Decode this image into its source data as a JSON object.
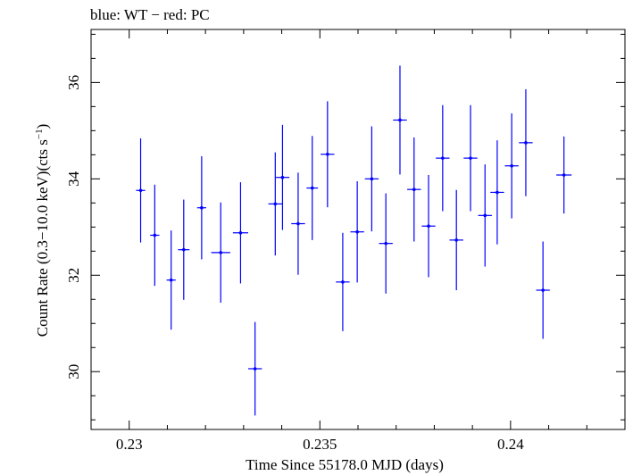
{
  "chart_data": {
    "type": "scatter",
    "title": "blue: WT − red: PC",
    "xlabel": "Time Since 55178.0 MJD (days)",
    "ylabel_main": "Count Rate (0.3−10.0 keV)(cts s",
    "ylabel_sup": "−1",
    "ylabel_close": ")",
    "xlim": [
      0.229,
      0.243
    ],
    "ylim": [
      28.8,
      37.1
    ],
    "xticks": [
      {
        "value": 0.23,
        "label": "0.23"
      },
      {
        "value": 0.235,
        "label": "0.235"
      },
      {
        "value": 0.24,
        "label": "0.24"
      }
    ],
    "yticks": [
      {
        "value": 30,
        "label": "30"
      },
      {
        "value": 32,
        "label": "32"
      },
      {
        "value": 34,
        "label": "34"
      },
      {
        "value": 36,
        "label": "36"
      }
    ],
    "series": [
      {
        "color": "#0000ff",
        "points": [
          {
            "x": 0.2303,
            "y": 33.76,
            "xerr": 0.00012,
            "yerr": 1.08
          },
          {
            "x": 0.23067,
            "y": 32.83,
            "xerr": 0.00012,
            "yerr": 1.05
          },
          {
            "x": 0.2311,
            "y": 31.9,
            "xerr": 0.00012,
            "yerr": 1.03
          },
          {
            "x": 0.23143,
            "y": 32.53,
            "xerr": 0.00015,
            "yerr": 1.04
          },
          {
            "x": 0.2319,
            "y": 33.4,
            "xerr": 0.00012,
            "yerr": 1.07
          },
          {
            "x": 0.2324,
            "y": 32.47,
            "xerr": 0.00025,
            "yerr": 1.04
          },
          {
            "x": 0.23292,
            "y": 32.88,
            "xerr": 0.0002,
            "yerr": 1.05
          },
          {
            "x": 0.2333,
            "y": 30.06,
            "xerr": 0.00018,
            "yerr": 0.97
          },
          {
            "x": 0.23383,
            "y": 33.48,
            "xerr": 0.00018,
            "yerr": 1.07
          },
          {
            "x": 0.23402,
            "y": 34.03,
            "xerr": 0.00018,
            "yerr": 1.09
          },
          {
            "x": 0.23443,
            "y": 33.07,
            "xerr": 0.00018,
            "yerr": 1.06
          },
          {
            "x": 0.2348,
            "y": 33.81,
            "xerr": 0.00015,
            "yerr": 1.08
          },
          {
            "x": 0.2352,
            "y": 34.51,
            "xerr": 0.00018,
            "yerr": 1.1
          },
          {
            "x": 0.2356,
            "y": 31.86,
            "xerr": 0.00018,
            "yerr": 1.02
          },
          {
            "x": 0.23598,
            "y": 32.9,
            "xerr": 0.00018,
            "yerr": 1.05
          },
          {
            "x": 0.23636,
            "y": 34.0,
            "xerr": 0.00018,
            "yerr": 1.09
          },
          {
            "x": 0.23673,
            "y": 32.66,
            "xerr": 0.00018,
            "yerr": 1.04
          },
          {
            "x": 0.2371,
            "y": 35.22,
            "xerr": 0.00018,
            "yerr": 1.13
          },
          {
            "x": 0.23747,
            "y": 33.78,
            "xerr": 0.00018,
            "yerr": 1.08
          },
          {
            "x": 0.23785,
            "y": 33.02,
            "xerr": 0.00018,
            "yerr": 1.06
          },
          {
            "x": 0.23822,
            "y": 34.43,
            "xerr": 0.00018,
            "yerr": 1.1
          },
          {
            "x": 0.23858,
            "y": 32.73,
            "xerr": 0.00018,
            "yerr": 1.04
          },
          {
            "x": 0.23895,
            "y": 34.43,
            "xerr": 0.00018,
            "yerr": 1.1
          },
          {
            "x": 0.23933,
            "y": 33.24,
            "xerr": 0.00018,
            "yerr": 1.06
          },
          {
            "x": 0.23965,
            "y": 33.72,
            "xerr": 0.00018,
            "yerr": 1.08
          },
          {
            "x": 0.24003,
            "y": 34.27,
            "xerr": 0.00018,
            "yerr": 1.09
          },
          {
            "x": 0.2404,
            "y": 34.75,
            "xerr": 0.00018,
            "yerr": 1.11
          },
          {
            "x": 0.24085,
            "y": 31.69,
            "xerr": 0.00018,
            "yerr": 1.01
          },
          {
            "x": 0.2414,
            "y": 34.08,
            "xerr": 0.0002,
            "yerr": 0.8
          }
        ]
      }
    ]
  }
}
